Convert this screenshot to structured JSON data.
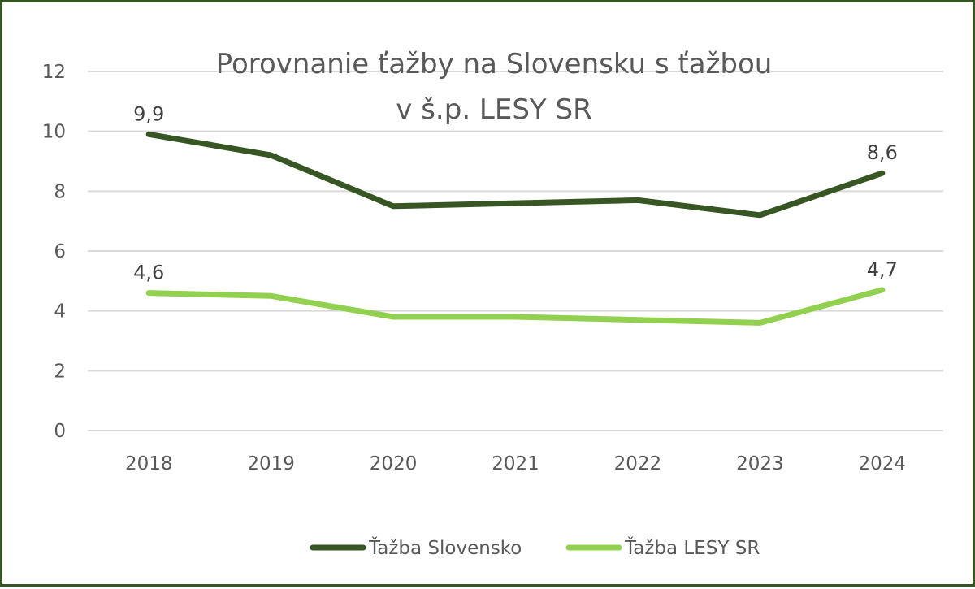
{
  "chart_data": {
    "type": "line",
    "title_lines": [
      "Porovnanie ťažby na Slovensku s ťažbou",
      "v š.p. LESY SR"
    ],
    "categories": [
      "2018",
      "2019",
      "2020",
      "2021",
      "2022",
      "2023",
      "2024"
    ],
    "ylim": [
      0,
      12
    ],
    "yticks": [
      "0",
      "2",
      "4",
      "6",
      "8",
      "10",
      "12"
    ],
    "grid": true,
    "legend_position": "bottom",
    "series": [
      {
        "name": "Ťažba Slovensko",
        "color": "#375623",
        "values": [
          9.9,
          9.2,
          7.5,
          7.6,
          7.7,
          7.2,
          8.6
        ],
        "data_labels": [
          "9,9",
          null,
          null,
          null,
          null,
          null,
          "8,6"
        ]
      },
      {
        "name": "Ťažba LESY SR",
        "color": "#92D050",
        "values": [
          4.6,
          4.5,
          3.8,
          3.8,
          3.7,
          3.6,
          4.7
        ],
        "data_labels": [
          "4,6",
          null,
          null,
          null,
          null,
          null,
          "4,7"
        ]
      }
    ]
  }
}
